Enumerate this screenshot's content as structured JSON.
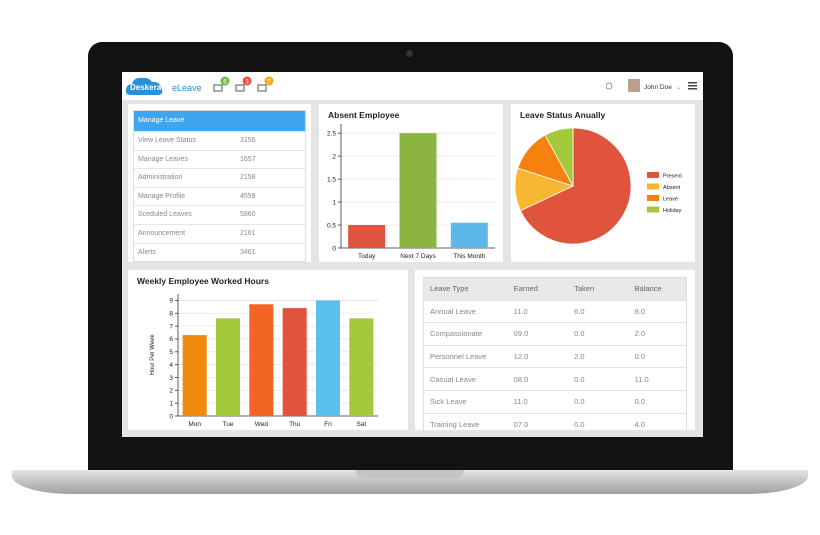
{
  "header": {
    "logo": "Deskera",
    "app": "eLeave",
    "badges": [
      "6",
      "3",
      "7"
    ],
    "user": "John Doe"
  },
  "menu": {
    "title": "Manage Leave",
    "items": [
      {
        "label": "View Leave Status",
        "count": "3156"
      },
      {
        "label": "Manage Leaves",
        "count": "1657"
      },
      {
        "label": "Administration",
        "count": "2158"
      },
      {
        "label": "Manage Profile",
        "count": "4559"
      },
      {
        "label": "Sceduled Leaves",
        "count": "5860"
      },
      {
        "label": "Announcement",
        "count": "2161"
      },
      {
        "label": "Alerts",
        "count": "3461"
      }
    ]
  },
  "chart_data": [
    {
      "type": "bar",
      "title": "Absent Employee",
      "categories": [
        "Today",
        "Next 7 Days",
        "This Month"
      ],
      "values": [
        0.5,
        2.5,
        0.55
      ],
      "colors": [
        "#e0533c",
        "#8bb440",
        "#5db8e8"
      ],
      "ylim": [
        0,
        2.7
      ],
      "yticks": [
        0,
        0.5,
        1,
        1.5,
        2,
        2.5
      ],
      "grid": true
    },
    {
      "type": "pie",
      "title": "Leave Status Anually",
      "categories": [
        "Present",
        "Absent",
        "Leave",
        "Holiday"
      ],
      "values": [
        68,
        12,
        12,
        8
      ],
      "colors": [
        "#e0533c",
        "#f7b733",
        "#f5820f",
        "#a3c83a"
      ],
      "legend": "right"
    },
    {
      "type": "bar",
      "title": "Weekly Employee Worked Hours",
      "y_label": "Hour Per Week",
      "categories": [
        "Mon",
        "Tue",
        "Wed",
        "Thu",
        "Fri",
        "Sat"
      ],
      "values": [
        6.3,
        7.6,
        8.7,
        8.4,
        9,
        7.6
      ],
      "colors": [
        "#f08a0e",
        "#a3c83a",
        "#f26522",
        "#e0533c",
        "#5bc0eb",
        "#a3c83a"
      ],
      "ylim": [
        0,
        9.5
      ],
      "yticks": [
        0,
        1,
        2,
        3,
        4,
        5,
        6,
        7,
        8,
        9
      ],
      "grid": true
    }
  ],
  "table": {
    "columns": [
      "Leave Type",
      "Earned",
      "Taken",
      "Balance"
    ],
    "rows": [
      [
        "Annual Leave",
        "11.0",
        "6.0",
        "8.0"
      ],
      [
        "Compassionate",
        "09.0",
        "0.0",
        "2.0"
      ],
      [
        "Personnel Leave",
        "12.0",
        "2.0",
        "0.0"
      ],
      [
        "Casual Leave",
        "08.0",
        "0.0",
        "11.0"
      ],
      [
        "Sick Leave",
        "11.0",
        "0.0",
        "0.0"
      ],
      [
        "Training Leave",
        "07.0",
        "0.0",
        "4.0"
      ]
    ]
  }
}
